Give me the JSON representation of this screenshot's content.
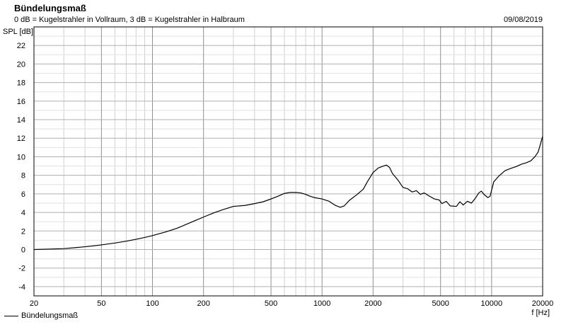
{
  "header": {
    "title": "Bündelungsmaß",
    "subtitle": "0 dB = Kugelstrahler in Vollraum, 3 dB = Kugelstrahler in Halbraum",
    "date": "09/08/2019"
  },
  "chart_data": {
    "type": "line",
    "ylabel": "SPL [dB]",
    "xlabel": "f [Hz]",
    "x_scale": "log",
    "xlim": [
      20,
      20000
    ],
    "ylim": [
      -5,
      24
    ],
    "grid": true,
    "x_ticks": [
      20,
      50,
      100,
      200,
      500,
      1000,
      2000,
      5000,
      10000,
      20000
    ],
    "x_tick_labels": [
      "20",
      "50",
      "100",
      "200",
      "500",
      "1000",
      "2000",
      "5000",
      "10000",
      "20000"
    ],
    "y_ticks": [
      -4,
      -2,
      0,
      2,
      4,
      6,
      8,
      10,
      12,
      14,
      16,
      18,
      20,
      22
    ],
    "y_tick_labels": [
      "-4",
      "-2",
      "0",
      "2",
      "4",
      "6",
      "8",
      "10",
      "12",
      "14",
      "16",
      "18",
      "20",
      "22"
    ],
    "legend_position": "bottom-left",
    "series": [
      {
        "name": "Bündelungsmaß",
        "color": "#000000",
        "points": [
          [
            20,
            0.0
          ],
          [
            25,
            0.05
          ],
          [
            30,
            0.1
          ],
          [
            35,
            0.2
          ],
          [
            40,
            0.3
          ],
          [
            45,
            0.4
          ],
          [
            50,
            0.5
          ],
          [
            60,
            0.7
          ],
          [
            70,
            0.9
          ],
          [
            80,
            1.1
          ],
          [
            90,
            1.3
          ],
          [
            100,
            1.5
          ],
          [
            120,
            1.9
          ],
          [
            140,
            2.3
          ],
          [
            160,
            2.75
          ],
          [
            180,
            3.15
          ],
          [
            200,
            3.5
          ],
          [
            230,
            3.95
          ],
          [
            260,
            4.3
          ],
          [
            300,
            4.65
          ],
          [
            350,
            4.75
          ],
          [
            400,
            4.95
          ],
          [
            450,
            5.15
          ],
          [
            500,
            5.45
          ],
          [
            550,
            5.75
          ],
          [
            600,
            6.05
          ],
          [
            650,
            6.15
          ],
          [
            700,
            6.15
          ],
          [
            750,
            6.1
          ],
          [
            800,
            5.95
          ],
          [
            850,
            5.75
          ],
          [
            900,
            5.6
          ],
          [
            1000,
            5.45
          ],
          [
            1100,
            5.2
          ],
          [
            1200,
            4.75
          ],
          [
            1280,
            4.55
          ],
          [
            1350,
            4.7
          ],
          [
            1450,
            5.3
          ],
          [
            1600,
            5.9
          ],
          [
            1750,
            6.5
          ],
          [
            1850,
            7.3
          ],
          [
            2000,
            8.3
          ],
          [
            2150,
            8.8
          ],
          [
            2300,
            9.0
          ],
          [
            2400,
            9.1
          ],
          [
            2500,
            8.85
          ],
          [
            2600,
            8.2
          ],
          [
            2800,
            7.5
          ],
          [
            3000,
            6.7
          ],
          [
            3200,
            6.55
          ],
          [
            3400,
            6.2
          ],
          [
            3600,
            6.35
          ],
          [
            3800,
            5.95
          ],
          [
            4000,
            6.1
          ],
          [
            4300,
            5.75
          ],
          [
            4600,
            5.45
          ],
          [
            4900,
            5.35
          ],
          [
            5100,
            4.95
          ],
          [
            5400,
            5.2
          ],
          [
            5700,
            4.7
          ],
          [
            6200,
            4.65
          ],
          [
            6500,
            5.15
          ],
          [
            6800,
            4.8
          ],
          [
            7200,
            5.2
          ],
          [
            7600,
            5.0
          ],
          [
            8000,
            5.5
          ],
          [
            8400,
            6.1
          ],
          [
            8700,
            6.3
          ],
          [
            9000,
            5.95
          ],
          [
            9500,
            5.6
          ],
          [
            9800,
            5.75
          ],
          [
            10000,
            6.4
          ],
          [
            10300,
            7.3
          ],
          [
            11000,
            7.9
          ],
          [
            12000,
            8.5
          ],
          [
            13000,
            8.75
          ],
          [
            14000,
            8.95
          ],
          [
            15000,
            9.2
          ],
          [
            16000,
            9.35
          ],
          [
            17000,
            9.55
          ],
          [
            18000,
            10.0
          ],
          [
            18800,
            10.5
          ],
          [
            19300,
            11.2
          ],
          [
            19700,
            11.8
          ],
          [
            20000,
            12.2
          ]
        ]
      }
    ]
  }
}
